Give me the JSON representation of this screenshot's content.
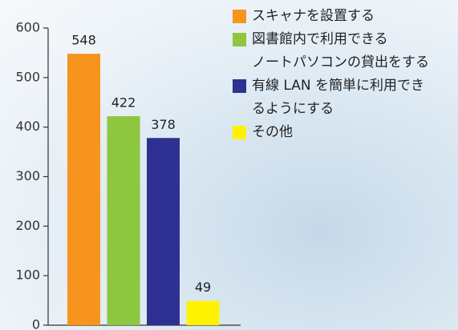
{
  "chart_data": {
    "type": "bar",
    "series": [
      {
        "name": "スキャナを設置する",
        "color": "#f7941d",
        "values": [
          548
        ]
      },
      {
        "name": "図書館内で利用できる\nノートパソコンの貸出をする",
        "color": "#8dc63f",
        "values": [
          422
        ]
      },
      {
        "name": "有線 LAN を簡単に利用でき\nるようにする",
        "color": "#2e3192",
        "values": [
          378
        ]
      },
      {
        "name": "その他",
        "color": "#fff200",
        "values": [
          49
        ]
      }
    ],
    "ylim": [
      0,
      600
    ],
    "yticks": [
      0,
      100,
      200,
      300,
      400,
      500,
      600
    ]
  }
}
